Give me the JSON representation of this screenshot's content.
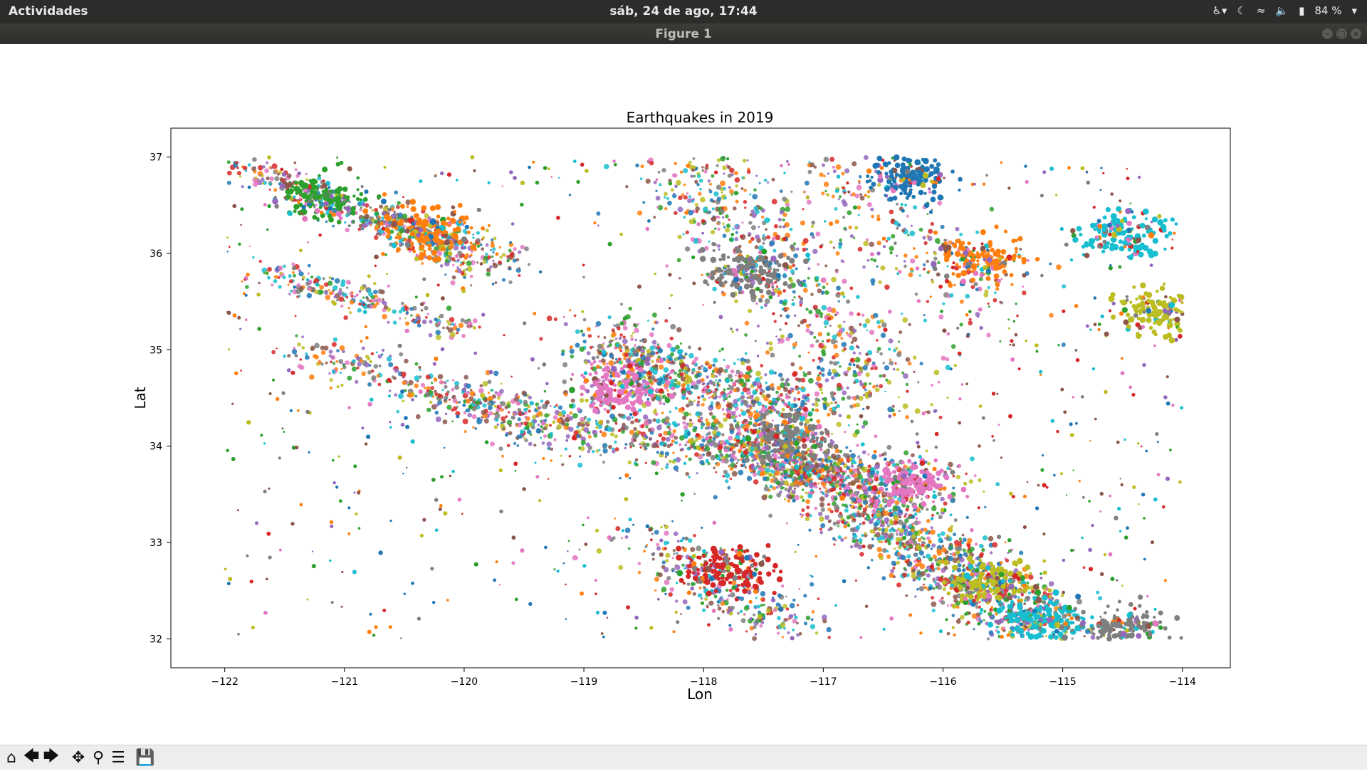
{
  "topbar": {
    "activities": "Actividades",
    "clock": "sáb, 24 de ago, 17:44",
    "battery": "84 %"
  },
  "window": {
    "title": "Figure 1"
  },
  "toolbar": {
    "buttons": [
      "home-icon",
      "back-arrow-icon",
      "forward-arrow-icon",
      "pan-icon",
      "zoom-icon",
      "configure-subplots-icon",
      "save-icon"
    ]
  },
  "chart_data": {
    "type": "scatter",
    "title": "Earthquakes in 2019",
    "xlabel": "Lon",
    "ylabel": "Lat",
    "xlim": [
      -122.45,
      -113.6
    ],
    "ylim": [
      31.7,
      37.3
    ],
    "xticks": [
      -122,
      -121,
      -120,
      -119,
      -118,
      -117,
      -116,
      -115,
      -114
    ],
    "xtick_labels": [
      "−122",
      "−121",
      "−120",
      "−119",
      "−118",
      "−117",
      "−116",
      "−115",
      "−114"
    ],
    "yticks": [
      32,
      33,
      34,
      35,
      36,
      37
    ],
    "ytick_labels": [
      "32",
      "33",
      "34",
      "35",
      "36",
      "37"
    ],
    "grid": false,
    "colors": [
      "#1f77b4",
      "#ff7f0e",
      "#2ca02c",
      "#d62728",
      "#9467bd",
      "#8c564b",
      "#e377c2",
      "#7f7f7f",
      "#bcbd22",
      "#17becf"
    ],
    "clusters": [
      {
        "lon": -121.2,
        "lat": 36.6,
        "color": "#2ca02c"
      },
      {
        "lon": -120.3,
        "lat": 36.2,
        "color": "#ff7f0e"
      },
      {
        "lon": -117.6,
        "lat": 35.8,
        "color": "#7f7f7f"
      },
      {
        "lon": -118.7,
        "lat": 34.6,
        "color": "#e377c2"
      },
      {
        "lon": -117.3,
        "lat": 34.1,
        "color": "#7f7f7f"
      },
      {
        "lon": -116.3,
        "lat": 33.6,
        "color": "#e377c2"
      },
      {
        "lon": -115.6,
        "lat": 32.6,
        "color": "#bcbd22"
      },
      {
        "lon": -115.2,
        "lat": 32.2,
        "color": "#17becf"
      },
      {
        "lon": -114.5,
        "lat": 36.2,
        "color": "#17becf"
      },
      {
        "lon": -116.3,
        "lat": 36.8,
        "color": "#1f77b4"
      },
      {
        "lon": -115.7,
        "lat": 35.95,
        "color": "#ff7f0e"
      },
      {
        "lon": -114.2,
        "lat": 35.4,
        "color": "#bcbd22"
      },
      {
        "lon": -114.5,
        "lat": 32.1,
        "color": "#7f7f7f"
      },
      {
        "lon": -117.8,
        "lat": 32.7,
        "color": "#d62728"
      }
    ]
  }
}
